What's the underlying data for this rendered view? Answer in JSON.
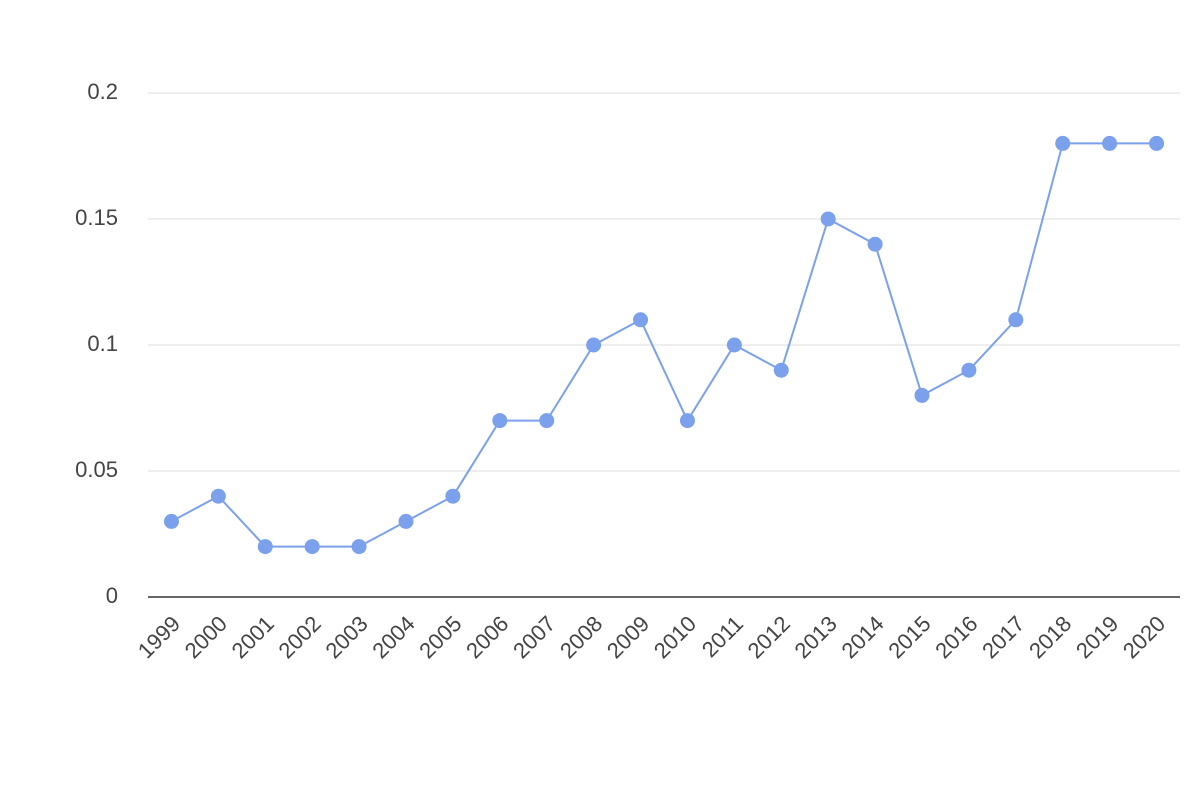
{
  "chart_data": {
    "type": "line",
    "categories": [
      "1999",
      "2000",
      "2001",
      "2002",
      "2003",
      "2004",
      "2005",
      "2006",
      "2007",
      "2008",
      "2009",
      "2010",
      "2011",
      "2012",
      "2013",
      "2014",
      "2015",
      "2016",
      "2017",
      "2018",
      "2019",
      "2020"
    ],
    "values": [
      0.03,
      0.04,
      0.02,
      0.02,
      0.02,
      0.03,
      0.04,
      0.07,
      0.07,
      0.1,
      0.11,
      0.07,
      0.1,
      0.09,
      0.15,
      0.14,
      0.08,
      0.09,
      0.11,
      0.18,
      0.18,
      0.18
    ],
    "color": "#7ba0ec",
    "ylim": [
      0,
      0.2
    ],
    "yticks": [
      0,
      0.05,
      0.1,
      0.15,
      0.2
    ],
    "grid": true
  }
}
